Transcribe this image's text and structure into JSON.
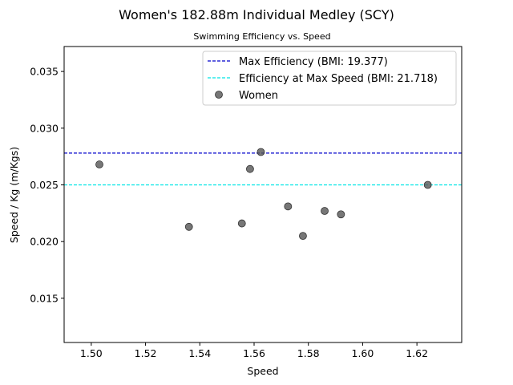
{
  "chart_data": {
    "type": "scatter",
    "title": "Women's 182.88m Individual Medley (SCY)",
    "subtitle": "Swimming Efficiency vs. Speed",
    "xlabel": "Speed",
    "ylabel": "Speed / Kg (m/Kgs)",
    "xlim": [
      1.49,
      1.6365
    ],
    "ylim": [
      0.0111,
      0.0372
    ],
    "xticks": [
      "1.50",
      "1.52",
      "1.54",
      "1.56",
      "1.58",
      "1.60",
      "1.62"
    ],
    "yticks": [
      "0.015",
      "0.020",
      "0.025",
      "0.030",
      "0.035"
    ],
    "grid": false,
    "legend_position": "top-right",
    "series": [
      {
        "name": "Women",
        "color": "#555555",
        "points": [
          {
            "x": 1.503,
            "y": 0.0268
          },
          {
            "x": 1.536,
            "y": 0.0213
          },
          {
            "x": 1.5555,
            "y": 0.0216
          },
          {
            "x": 1.5585,
            "y": 0.0264
          },
          {
            "x": 1.5625,
            "y": 0.0279
          },
          {
            "x": 1.5725,
            "y": 0.0231
          },
          {
            "x": 1.578,
            "y": 0.0205
          },
          {
            "x": 1.586,
            "y": 0.0227
          },
          {
            "x": 1.592,
            "y": 0.0224
          },
          {
            "x": 1.624,
            "y": 0.025
          }
        ]
      }
    ],
    "reference_lines": [
      {
        "name": "Max Efficiency (BMI: 19.377)",
        "y": 0.0278,
        "color": "#0000cc"
      },
      {
        "name": "Efficiency at Max Speed (BMI: 21.718)",
        "y": 0.025,
        "color": "#00e5e5"
      }
    ]
  }
}
